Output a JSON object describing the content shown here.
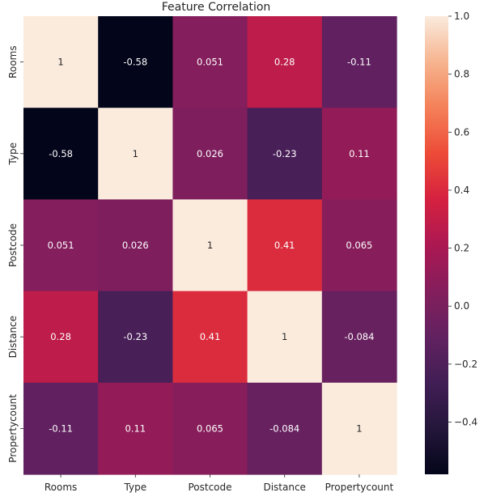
{
  "chart_data": {
    "type": "heatmap",
    "title": "Feature Correlation",
    "x_labels": [
      "Rooms",
      "Type",
      "Postcode",
      "Distance",
      "Propertycount"
    ],
    "y_labels": [
      "Rooms",
      "Type",
      "Postcode",
      "Distance",
      "Propertycount"
    ],
    "values": [
      [
        1,
        -0.58,
        0.051,
        0.28,
        -0.11
      ],
      [
        -0.58,
        1,
        0.026,
        -0.23,
        0.11
      ],
      [
        0.051,
        0.026,
        1,
        0.41,
        0.065
      ],
      [
        0.28,
        -0.23,
        0.41,
        1,
        -0.084
      ],
      [
        -0.11,
        0.11,
        0.065,
        -0.084,
        1
      ]
    ],
    "cell_labels": [
      [
        "1",
        "-0.58",
        "0.051",
        "0.28",
        "-0.11"
      ],
      [
        "-0.58",
        "1",
        "0.026",
        "-0.23",
        "0.11"
      ],
      [
        "0.051",
        "0.026",
        "1",
        "0.41",
        "0.065"
      ],
      [
        "0.28",
        "-0.23",
        "0.41",
        "1",
        "-0.084"
      ],
      [
        "-0.11",
        "0.11",
        "0.065",
        "-0.084",
        "1"
      ]
    ],
    "colormap": "rocket",
    "vmin": -0.58,
    "vmax": 1.0,
    "colorbar_ticks": [
      1.0,
      0.8,
      0.6,
      0.4,
      0.2,
      0.0,
      -0.2,
      -0.4
    ],
    "colorbar_tick_labels": [
      "1.0",
      "0.8",
      "0.6",
      "0.4",
      "0.2",
      "0.0",
      "−0.2",
      "−0.4"
    ],
    "colorbar_position": "right"
  }
}
